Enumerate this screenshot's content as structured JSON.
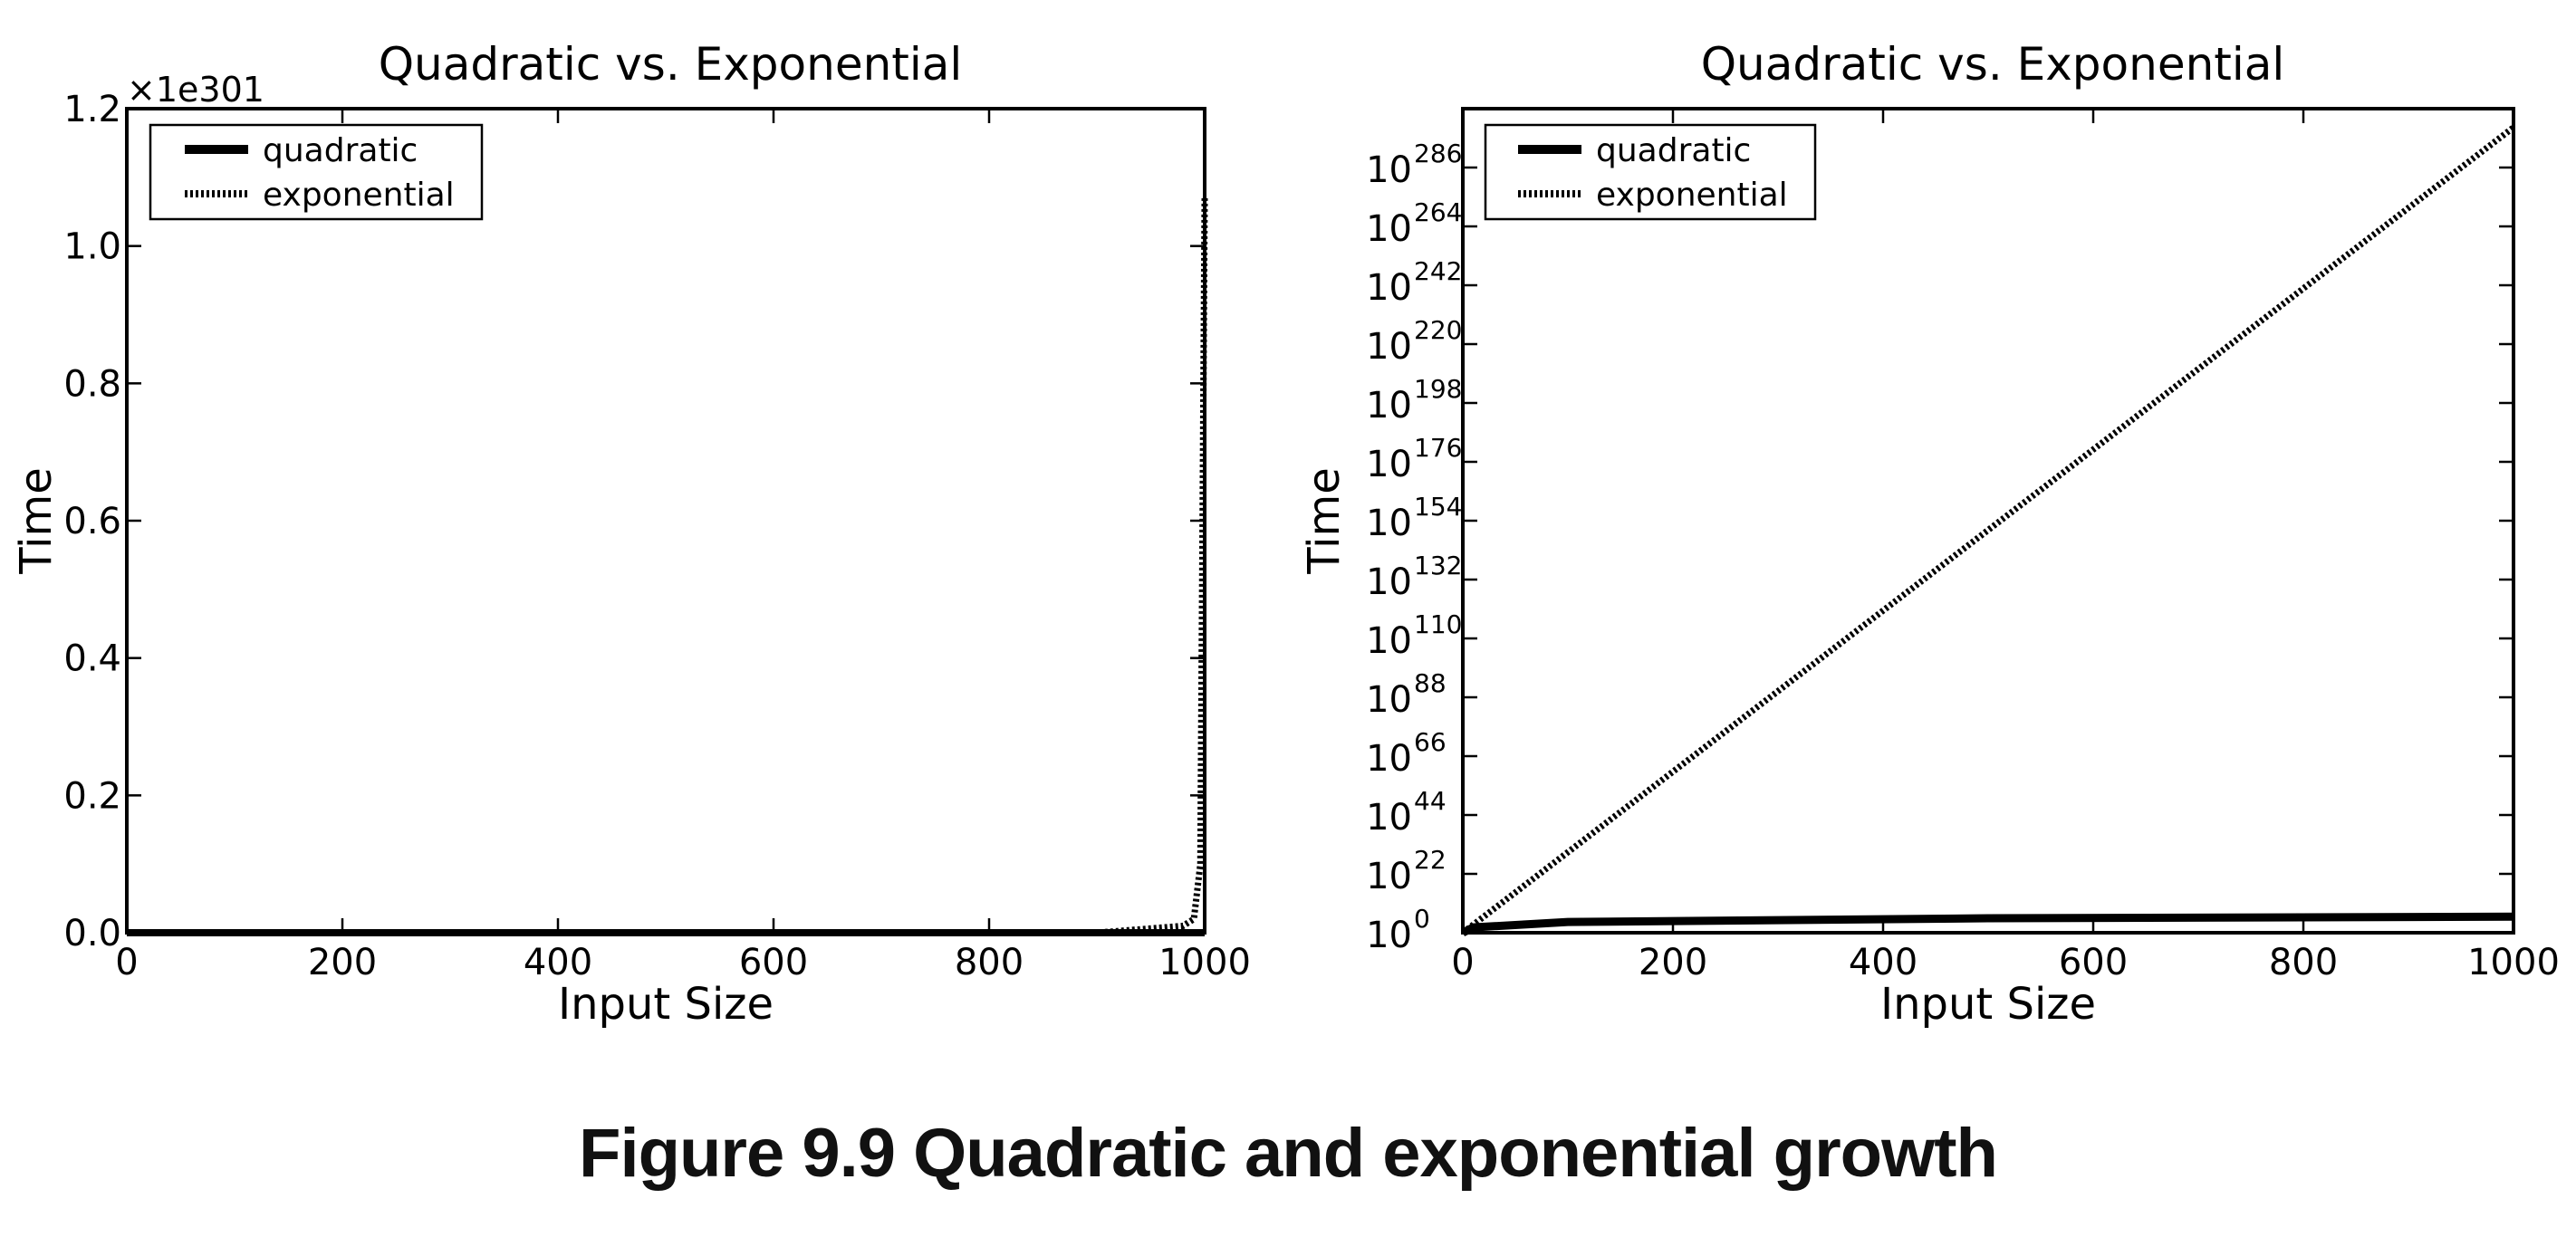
{
  "figure": {
    "caption": "Figure 9.9 Quadratic and exponential growth"
  },
  "chart_data": [
    {
      "type": "line",
      "title": "Quadratic vs. Exponential",
      "xlabel": "Input Size",
      "ylabel": "Time",
      "xlim": [
        0,
        1000
      ],
      "ylim": [
        0,
        1.2
      ],
      "y_scale": "linear",
      "y_multiplier_label": "×1e301",
      "xticks": [
        "0",
        "200",
        "400",
        "600",
        "800",
        "1000"
      ],
      "yticks": [
        "0.0",
        "0.2",
        "0.4",
        "0.6",
        "0.8",
        "1.0",
        "1.2"
      ],
      "legend": {
        "position": "top-left",
        "entries": [
          "quadratic",
          "exponential"
        ]
      },
      "series": [
        {
          "name": "quadratic",
          "style": "solid",
          "x": [
            0,
            200,
            400,
            600,
            800,
            1000
          ],
          "y": [
            0,
            0,
            0,
            0,
            0,
            0
          ]
        },
        {
          "name": "exponential",
          "style": "dotted",
          "x": [
            0,
            900,
            980,
            990,
            996,
            1000
          ],
          "y": [
            0,
            0,
            0.01,
            0.02,
            0.1,
            1.07
          ]
        }
      ]
    },
    {
      "type": "line",
      "title": "Quadratic vs. Exponential",
      "xlabel": "Input Size",
      "ylabel": "Time",
      "xlim": [
        0,
        1000
      ],
      "y_scale": "log",
      "ylim_exponent": [
        0,
        308
      ],
      "ytick_exponents": [
        0,
        22,
        44,
        66,
        88,
        110,
        132,
        154,
        176,
        198,
        220,
        242,
        264,
        286
      ],
      "xticks": [
        "0",
        "200",
        "400",
        "600",
        "800",
        "1000"
      ],
      "legend": {
        "position": "top-left",
        "entries": [
          "quadratic",
          "exponential"
        ]
      },
      "series": [
        {
          "name": "quadratic",
          "style": "solid",
          "x": [
            0,
            10,
            100,
            500,
            1000
          ],
          "y_log10": [
            0,
            2,
            4,
            5.4,
            6
          ]
        },
        {
          "name": "exponential",
          "style": "dotted",
          "x": [
            0,
            1000
          ],
          "y_log10": [
            0,
            301
          ]
        }
      ]
    }
  ]
}
